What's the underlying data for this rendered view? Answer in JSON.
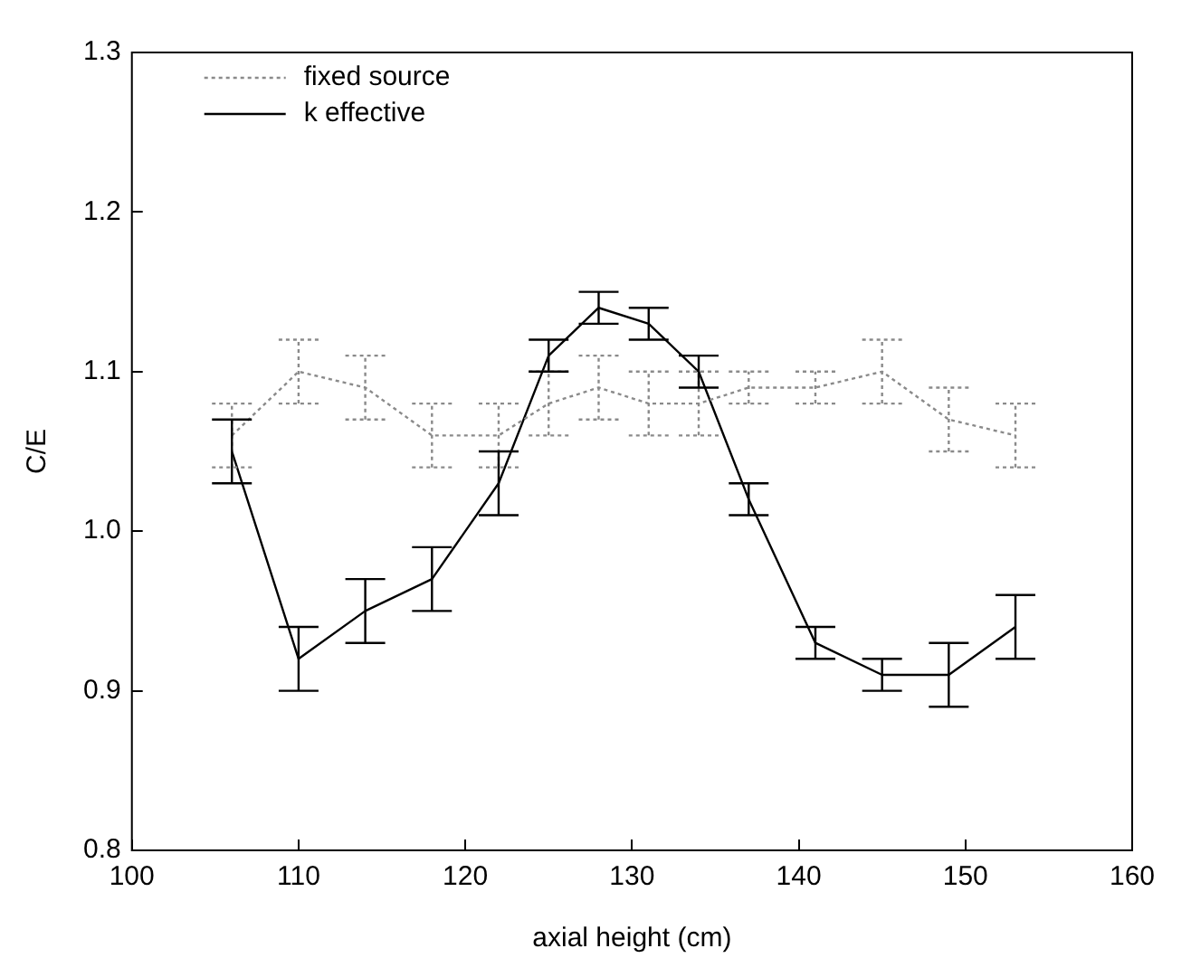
{
  "chart_data": {
    "type": "line",
    "xlabel": "axial height (cm)",
    "ylabel": "C/E",
    "xlim": [
      100,
      160
    ],
    "xticks": [
      100,
      110,
      120,
      130,
      140,
      150,
      160
    ],
    "ylim": [
      0.8,
      1.3
    ],
    "yticks": [
      {
        "value": 0.8,
        "label": "0.8"
      },
      {
        "value": 0.9,
        "label": "0.9"
      },
      {
        "value": 1.0,
        "label": "1.0"
      },
      {
        "value": 1.1,
        "label": "1.1"
      },
      {
        "value": 1.2,
        "label": "1.2"
      },
      {
        "value": 1.3,
        "label": "1.3"
      }
    ],
    "grid": false,
    "legend": "top left",
    "marker": "none",
    "x": [
      106,
      110,
      114,
      118,
      122,
      125,
      128,
      131,
      134,
      137,
      141,
      145,
      149,
      153
    ],
    "series": [
      {
        "name": "fixed source",
        "color": "#8a8a8a",
        "line_style": "dotted",
        "values": [
          1.06,
          1.1,
          1.09,
          1.06,
          1.06,
          1.08,
          1.09,
          1.08,
          1.08,
          1.09,
          1.09,
          1.1,
          1.07,
          1.06
        ],
        "errors": [
          0.02,
          0.02,
          0.02,
          0.02,
          0.02,
          0.02,
          0.02,
          0.02,
          0.02,
          0.01,
          0.01,
          0.02,
          0.02,
          0.02
        ]
      },
      {
        "name": "k effective",
        "color": "#000000",
        "line_style": "solid",
        "values": [
          1.05,
          0.92,
          0.95,
          0.97,
          1.03,
          1.11,
          1.14,
          1.13,
          1.1,
          1.02,
          0.93,
          0.91,
          0.91,
          0.94
        ],
        "errors": [
          0.02,
          0.02,
          0.02,
          0.02,
          0.02,
          0.01,
          0.01,
          0.01,
          0.01,
          0.01,
          0.01,
          0.01,
          0.02,
          0.02
        ]
      }
    ]
  }
}
